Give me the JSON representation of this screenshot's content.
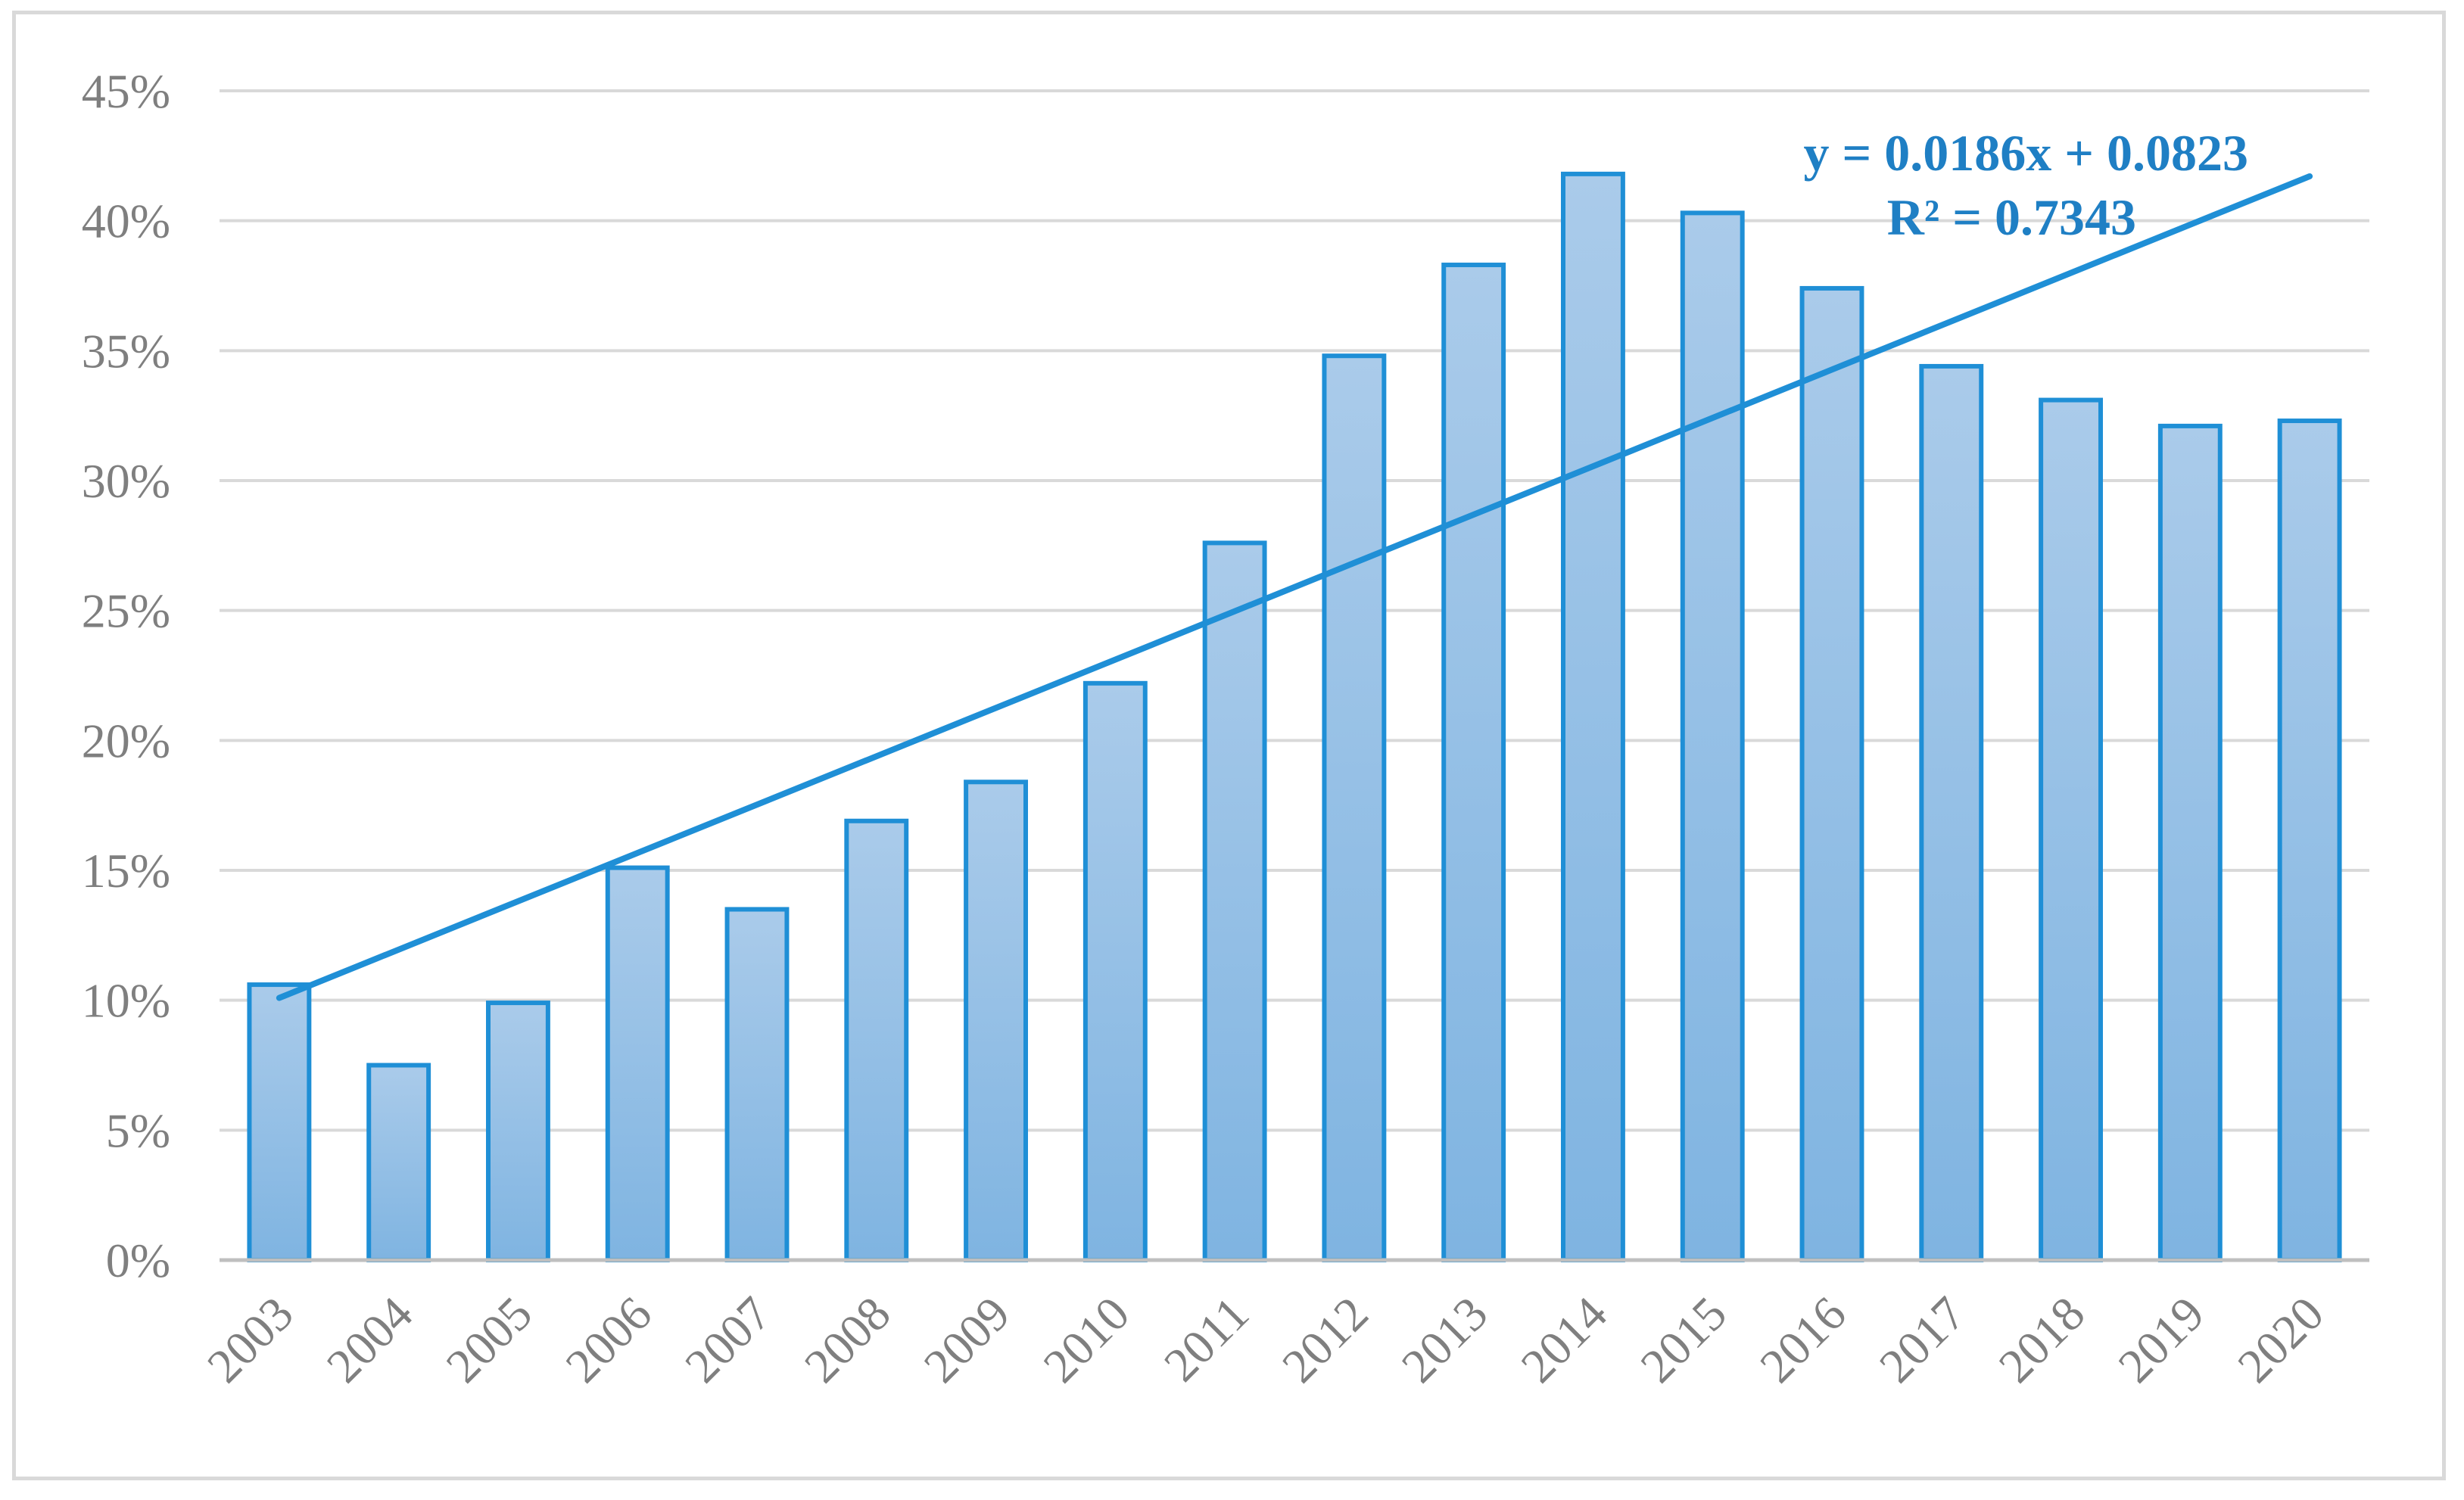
{
  "chart_data": {
    "type": "bar",
    "title": "",
    "xlabel": "",
    "ylabel": "",
    "categories": [
      "2003",
      "2004",
      "2005",
      "2006",
      "2007",
      "2008",
      "2009",
      "2010",
      "2011",
      "2012",
      "2013",
      "2014",
      "2015",
      "2016",
      "2017",
      "2018",
      "2019",
      "2020"
    ],
    "values": [
      0.106,
      0.075,
      0.099,
      0.151,
      0.135,
      0.169,
      0.184,
      0.222,
      0.276,
      0.348,
      0.383,
      0.418,
      0.403,
      0.374,
      0.344,
      0.331,
      0.321,
      0.323
    ],
    "ylim": [
      0,
      0.45
    ],
    "yticks": [
      0,
      0.05,
      0.1,
      0.15,
      0.2,
      0.25,
      0.3,
      0.35,
      0.4,
      0.45
    ],
    "ytick_labels": [
      "0%",
      "5%",
      "10%",
      "15%",
      "20%",
      "25%",
      "30%",
      "35%",
      "40%",
      "45%"
    ],
    "grid": true,
    "legend": "none",
    "trendline": {
      "type": "linear",
      "slope": 0.0186,
      "intercept": 0.0823,
      "equation_label": "y = 0.0186x + 0.0823",
      "r2_label": "R² = 0.7343"
    },
    "colors": {
      "bar_fill_top": "#aacbea",
      "bar_fill_bottom": "#7fb4e1",
      "bar_stroke": "#1f8fd6",
      "trendline": "#1f8fd6",
      "gridline": "#d9d9d9",
      "axis": "#bfbfbf",
      "tick_text": "#7f7f7f",
      "trend_text": "#1f7fc4"
    }
  }
}
